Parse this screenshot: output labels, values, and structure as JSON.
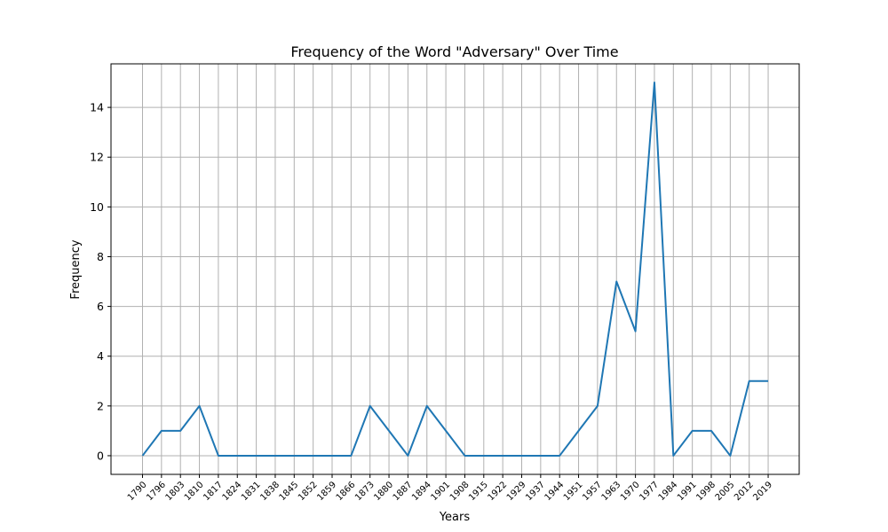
{
  "chart_data": {
    "type": "line",
    "title": "Frequency of the Word \"Adversary\" Over Time",
    "xlabel": "Years",
    "ylabel": "Frequency",
    "categories": [
      "1790",
      "1796",
      "1803",
      "1810",
      "1817",
      "1824",
      "1831",
      "1838",
      "1845",
      "1852",
      "1859",
      "1866",
      "1873",
      "1880",
      "1887",
      "1894",
      "1901",
      "1908",
      "1915",
      "1922",
      "1929",
      "1937",
      "1944",
      "1951",
      "1957",
      "1963",
      "1970",
      "1977",
      "1984",
      "1991",
      "1998",
      "2005",
      "2012",
      "2019"
    ],
    "series": [
      {
        "values": [
          0,
          1,
          1,
          2,
          0,
          0,
          0,
          0,
          0,
          0,
          0,
          0,
          2,
          1,
          0,
          2,
          1,
          0,
          0,
          0,
          0,
          0,
          0,
          1,
          2,
          7,
          5,
          15,
          0,
          1,
          1,
          0,
          3,
          3
        ]
      }
    ],
    "yticks": [
      0,
      2,
      4,
      6,
      8,
      10,
      12,
      14
    ],
    "ylim": [
      -0.75,
      15.75
    ],
    "grid": true,
    "color": "#1f77b4"
  }
}
